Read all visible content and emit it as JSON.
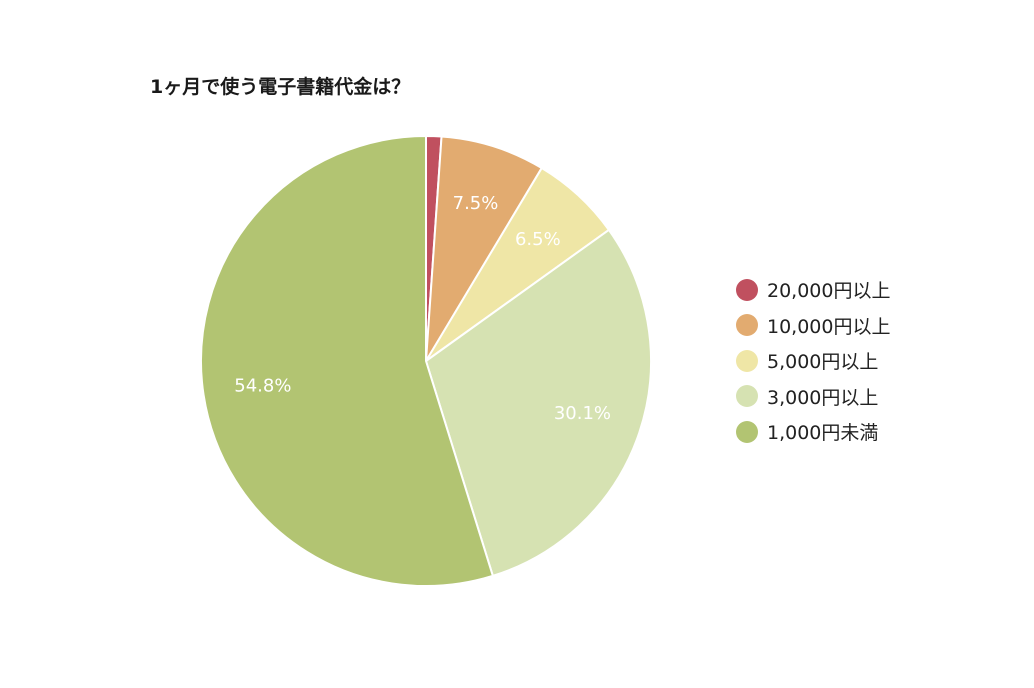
{
  "chart_data": {
    "type": "pie",
    "title": "1ヶ月で使う電子書籍代金は？",
    "categories": [
      "20,000円以上",
      "10,000円以上",
      "5,000円以上",
      "3,000円以上",
      "1,000円未満"
    ],
    "values": [
      1.1,
      7.5,
      6.5,
      30.1,
      54.8
    ],
    "data_labels": [
      "",
      "7.5%",
      "6.5%",
      "30.1%",
      "54.8%"
    ],
    "colors": [
      "#c0505f",
      "#e2ab70",
      "#efe6a6",
      "#d6e2b2",
      "#b2c472"
    ],
    "start_angle": "12 o'clock",
    "direction": "clockwise",
    "legend_position": "right"
  }
}
